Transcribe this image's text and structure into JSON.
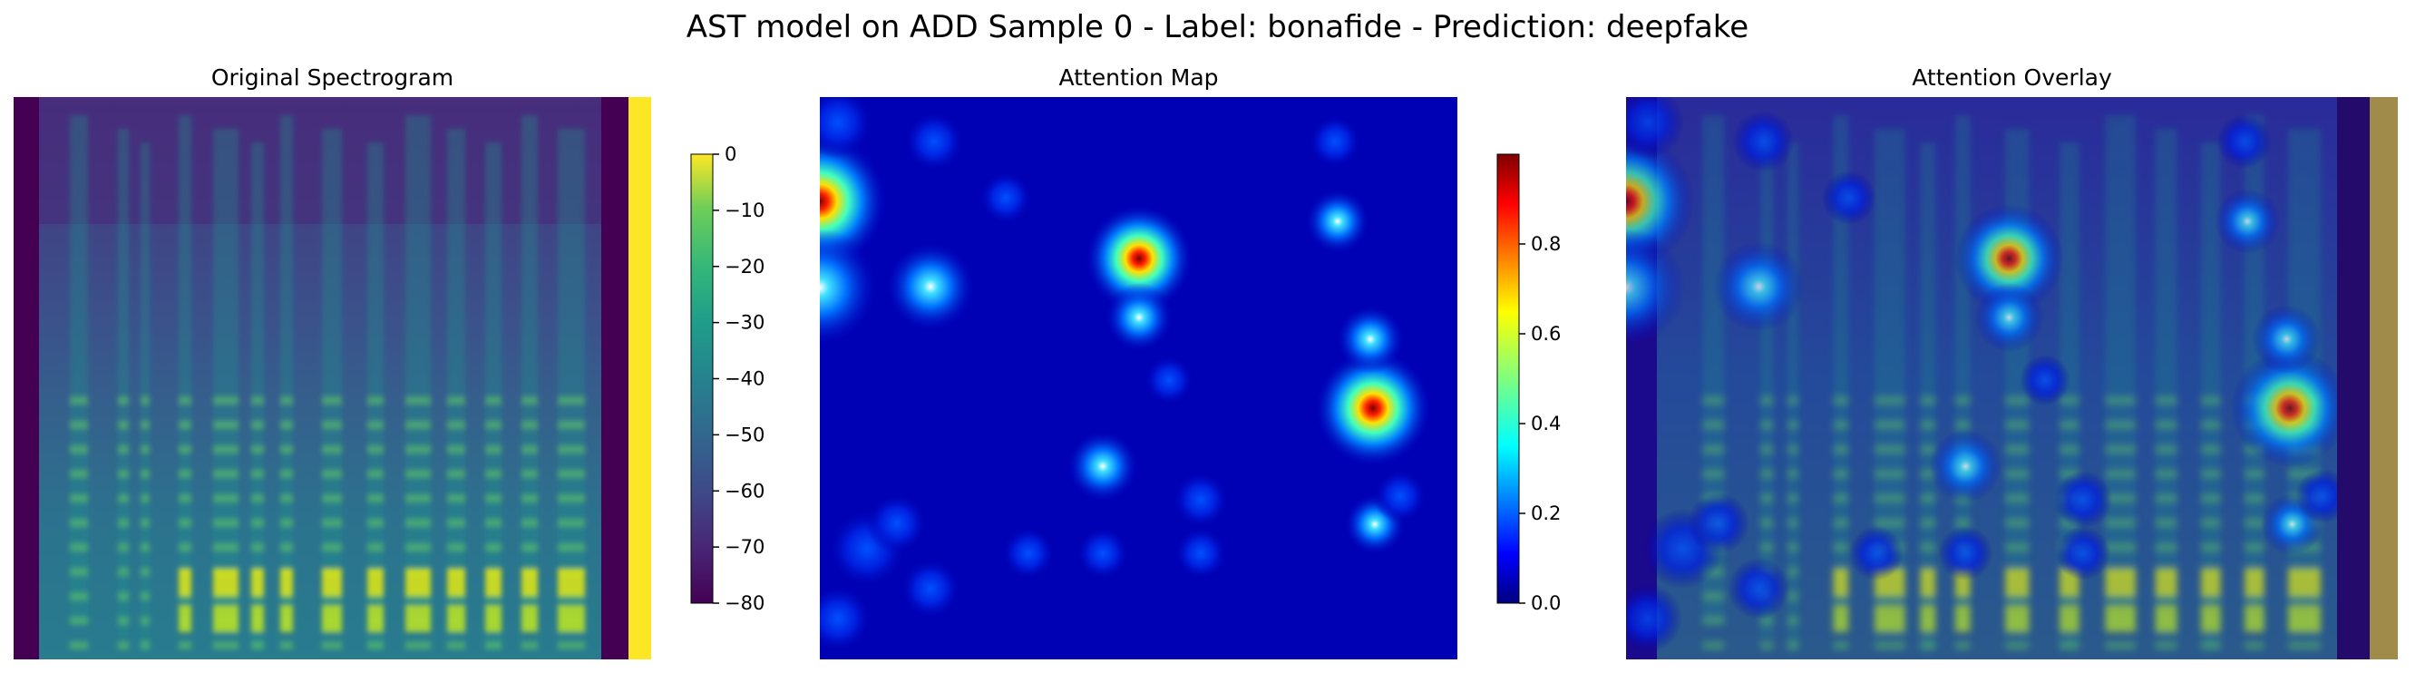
{
  "figure": {
    "title": "AST model on ADD Sample 0 - Label: bonafide - Prediction: deepfake"
  },
  "panels": [
    {
      "title": "Original Spectrogram"
    },
    {
      "title": "Attention Map"
    },
    {
      "title": "Attention Overlay"
    }
  ],
  "colors": {
    "viridis_low": "#440154",
    "viridis_mid": "#21918c",
    "viridis_high": "#fde725",
    "jet_low": "#00007f",
    "jet_high": "#7f0000"
  },
  "chart_data": [
    {
      "type": "heatmap",
      "title": "Original Spectrogram",
      "colormap": "viridis",
      "axes": "off",
      "colorbar": {
        "range": [
          -80,
          0
        ],
        "ticks": [
          0,
          -10,
          -20,
          -30,
          -40,
          -50,
          -60,
          -70,
          -80
        ],
        "tick_labels": [
          "0",
          "−10",
          "−20",
          "−30",
          "−40",
          "−50",
          "−60",
          "−70",
          "−80"
        ]
      }
    },
    {
      "type": "heatmap",
      "title": "Attention Map",
      "colormap": "jet",
      "axes": "off",
      "colorbar": {
        "range": [
          0,
          1
        ],
        "ticks": [
          0.0,
          0.2,
          0.4,
          0.6,
          0.8
        ],
        "tick_labels": [
          "0.0",
          "0.2",
          "0.4",
          "0.6",
          "0.8"
        ]
      }
    },
    {
      "type": "heatmap",
      "title": "Attention Overlay",
      "colormap": "jet over viridis",
      "axes": "off"
    }
  ]
}
